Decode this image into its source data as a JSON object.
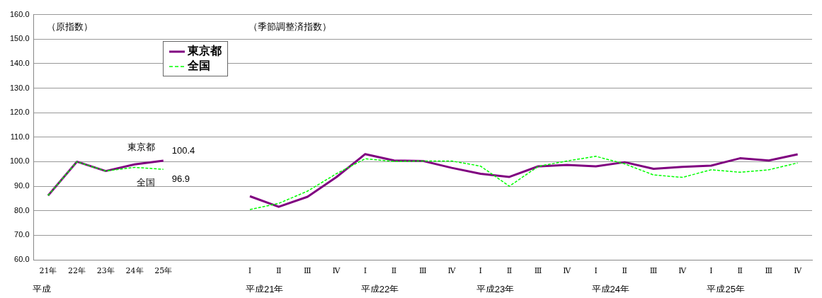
{
  "chart_data": {
    "type": "line",
    "categories": [
      "21年",
      "22年",
      "23年",
      "24年",
      "25年",
      null,
      null,
      "Ⅰ",
      "Ⅱ",
      "Ⅲ",
      "Ⅳ",
      "Ⅰ",
      "Ⅱ",
      "Ⅲ",
      "Ⅳ",
      "Ⅰ",
      "Ⅱ",
      "Ⅲ",
      "Ⅳ",
      "Ⅰ",
      "Ⅱ",
      "Ⅲ",
      "Ⅳ",
      "Ⅰ",
      "Ⅱ",
      "Ⅲ",
      "Ⅳ"
    ],
    "series": [
      {
        "name": "東京都",
        "color": "#800080",
        "line_style": "solid",
        "values": [
          86.2,
          100,
          96.2,
          98.9,
          100.4,
          null,
          null,
          85.9,
          81.6,
          85.7,
          93.7,
          103.1,
          100.5,
          100.3,
          97.5,
          95.1,
          93.8,
          98.1,
          98.7,
          98.1,
          99.8,
          97.1,
          97.9,
          98.4,
          101.4,
          100.5,
          103.0
        ],
        "value_labels": [
          null,
          null,
          null,
          null,
          "100.4",
          null,
          null,
          null,
          null,
          null,
          null,
          null,
          null,
          null,
          null,
          null,
          null,
          null,
          null,
          null,
          null,
          null,
          null,
          null,
          null,
          null,
          null
        ]
      },
      {
        "name": "全国",
        "color": "#00ff00",
        "line_style": "dashed",
        "values": [
          86.2,
          100,
          96.2,
          97.7,
          96.9,
          null,
          null,
          80.5,
          83.0,
          88.0,
          95.1,
          101.2,
          100.1,
          100.3,
          100.3,
          98.2,
          90.0,
          98.1,
          100.3,
          102.2,
          99.1,
          94.6,
          93.6,
          96.7,
          95.7,
          96.7,
          99.5
        ],
        "value_labels": [
          null,
          null,
          null,
          null,
          "96.9",
          null,
          null,
          null,
          null,
          null,
          null,
          null,
          null,
          null,
          null,
          null,
          null,
          null,
          null,
          null,
          null,
          null,
          null,
          null,
          null,
          null,
          null
        ]
      }
    ],
    "ylim": [
      60,
      160
    ],
    "yticks": [
      {
        "value": 60,
        "label": "60.0"
      },
      {
        "value": 70,
        "label": "70.0"
      },
      {
        "value": 80,
        "label": "80.0"
      },
      {
        "value": 90,
        "label": "90.0"
      },
      {
        "value": 100,
        "label": "100.0"
      },
      {
        "value": 110,
        "label": "110.0"
      },
      {
        "value": 120,
        "label": "120.0"
      },
      {
        "value": 130,
        "label": "130.0"
      },
      {
        "value": 140,
        "label": "140.0"
      },
      {
        "value": 150,
        "label": "150.0"
      },
      {
        "value": 160,
        "label": "160.0"
      }
    ],
    "grid": "y",
    "legend": "top left",
    "marker": "none",
    "annotations": [
      "（原指数）",
      "（季節調整済指数）",
      "平成",
      "平成21年",
      "平成22年",
      "平成23年",
      "平成24年",
      "平成25年"
    ]
  }
}
